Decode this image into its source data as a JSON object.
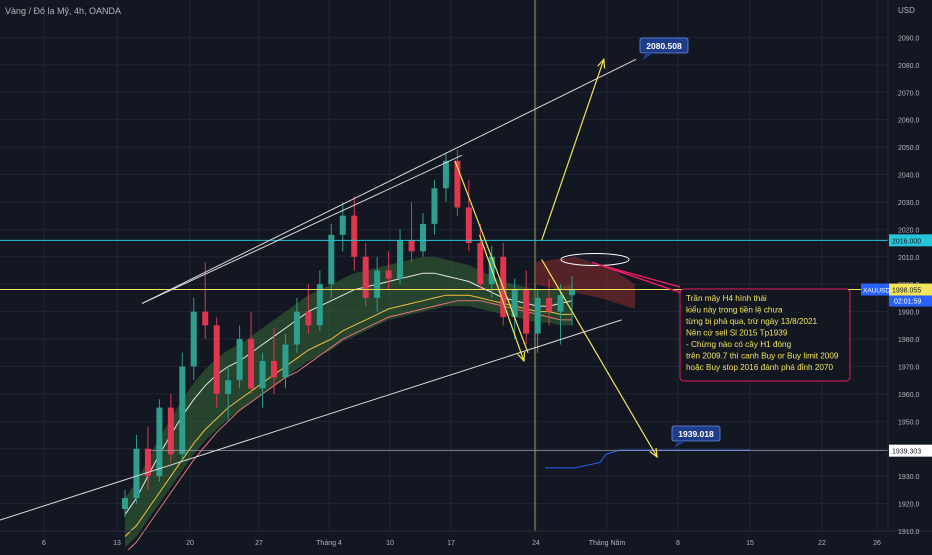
{
  "header": {
    "title": "Vàng / Đô la Mỹ, 4h, OANDA",
    "currency": "USD"
  },
  "colors": {
    "background": "#131722",
    "grid": "#1f2433",
    "axis_text": "#b2b5be",
    "candle_up": "#2e9e8f",
    "candle_down": "#e0364f",
    "trendline": "#d9d9d9",
    "arrow": "#f2e45c",
    "cyan_level": "#26c6da",
    "yellow_level": "#f2e45c",
    "label_blue": "#1e3c8c",
    "annotation_pink": "#e91e63",
    "cloud_green": "#3d7a3d",
    "cloud_red": "#8c2b2b",
    "ema_blue": "#2962ff",
    "ema_orange": "#ff9800"
  },
  "chart_data": {
    "type": "candlestick",
    "ylim": [
      1910,
      2100
    ],
    "y_ticks": [
      1910,
      1920,
      1930,
      1940,
      1950,
      1960,
      1970,
      1980,
      1990,
      2000,
      2010,
      2020,
      2030,
      2040,
      2050,
      2060,
      2070,
      2080,
      2090
    ],
    "x_tick_labels": [
      "6",
      "13",
      "20",
      "27",
      "Tháng 4",
      "10",
      "17",
      "24",
      "Tháng Năm",
      "8",
      "15",
      "22",
      "26"
    ],
    "series": [
      {
        "kind": "candles",
        "values": [
          [
            1918,
            1925,
            1915,
            1922
          ],
          [
            1922,
            1945,
            1920,
            1940
          ],
          [
            1940,
            1948,
            1925,
            1930
          ],
          [
            1930,
            1958,
            1928,
            1955
          ],
          [
            1955,
            1960,
            1935,
            1938
          ],
          [
            1938,
            1975,
            1936,
            1970
          ],
          [
            1970,
            1995,
            1965,
            1990
          ],
          [
            1990,
            2008,
            1980,
            1985
          ],
          [
            1985,
            1988,
            1955,
            1960
          ],
          [
            1960,
            1970,
            1950,
            1965
          ],
          [
            1965,
            1985,
            1962,
            1980
          ],
          [
            1980,
            1990,
            1960,
            1962
          ],
          [
            1962,
            1975,
            1955,
            1972
          ],
          [
            1972,
            1984,
            1960,
            1966
          ],
          [
            1966,
            1982,
            1962,
            1978
          ],
          [
            1978,
            1995,
            1975,
            1990
          ],
          [
            1990,
            2000,
            1982,
            1985
          ],
          [
            1985,
            2005,
            1983,
            2000
          ],
          [
            2000,
            2022,
            1995,
            2018
          ],
          [
            2018,
            2030,
            2012,
            2025
          ],
          [
            2025,
            2032,
            2005,
            2010
          ],
          [
            2010,
            2015,
            1992,
            1995
          ],
          [
            1995,
            2010,
            1990,
            2005
          ],
          [
            2005,
            2012,
            1998,
            2002
          ],
          [
            2002,
            2020,
            2000,
            2016
          ],
          [
            2016,
            2030,
            2008,
            2012
          ],
          [
            2012,
            2026,
            2010,
            2022
          ],
          [
            2022,
            2038,
            2018,
            2035
          ],
          [
            2035,
            2048,
            2030,
            2045
          ],
          [
            2045,
            2049,
            2025,
            2028
          ],
          [
            2028,
            2038,
            2012,
            2015
          ],
          [
            2015,
            2022,
            1998,
            2000
          ],
          [
            2000,
            2014,
            1995,
            2010
          ],
          [
            2010,
            2015,
            1985,
            1988
          ],
          [
            1988,
            2002,
            1980,
            1998
          ],
          [
            1998,
            2005,
            1978,
            1982
          ],
          [
            1982,
            1998,
            1975,
            1995
          ],
          [
            1995,
            2002,
            1985,
            1990
          ],
          [
            1990,
            2000,
            1978,
            1996
          ],
          [
            1996,
            2003,
            1985,
            1998
          ]
        ]
      },
      {
        "kind": "line",
        "name": "",
        "values": [
          1916,
          1922,
          1930,
          1938,
          1945,
          1952,
          1958,
          1963,
          1967,
          1970,
          1972,
          1975,
          1978,
          1981,
          1984,
          1987,
          1990,
          1992,
          1994,
          1996,
          1998,
          1999,
          2000,
          2001,
          2002,
          2003,
          2004,
          2004,
          2003,
          2002,
          2001,
          1999,
          1997,
          1995,
          1994,
          1993,
          1992,
          1992,
          1993,
          1994
        ]
      },
      {
        "kind": "line",
        "name": "",
        "values": [
          1908,
          1912,
          1918,
          1924,
          1930,
          1936,
          1942,
          1947,
          1951,
          1955,
          1958,
          1961,
          1964,
          1967,
          1970,
          1973,
          1976,
          1978,
          1980,
          1983,
          1985,
          1987,
          1989,
          1991,
          1992,
          1993,
          1994,
          1995,
          1996,
          1996,
          1996,
          1995,
          1994,
          1993,
          1992,
          1991,
          1990,
          1990,
          1989,
          1989
        ]
      },
      {
        "kind": "line",
        "name": "",
        "values": [
          1902,
          1906,
          1912,
          1918,
          1924,
          1930,
          1936,
          1941,
          1946,
          1950,
          1954,
          1957,
          1960,
          1963,
          1966,
          1968,
          1971,
          1974,
          1977,
          1980,
          1982,
          1984,
          1986,
          1988,
          1989,
          1990,
          1991,
          1992,
          1993,
          1994,
          1994,
          1994,
          1993,
          1992,
          1991,
          1990,
          1989,
          1988,
          1987,
          1987
        ]
      }
    ],
    "trendlines": [
      {
        "x": [
          0.16,
          0.52
        ],
        "y": [
          1993,
          2047
        ]
      },
      {
        "x": [
          0.0,
          0.7
        ],
        "y": [
          1914,
          1987
        ]
      }
    ],
    "arrows": [
      {
        "x": [
          0.54,
          0.59
        ],
        "y": [
          2018,
          1972
        ]
      },
      {
        "x": [
          0.61,
          0.68
        ],
        "y": [
          2016,
          2082
        ]
      },
      {
        "x": [
          0.61,
          0.74
        ],
        "y": [
          2009,
          1937
        ]
      }
    ],
    "levels": [
      {
        "value": 2016.0,
        "label": "2016.000",
        "color": "cyan"
      },
      {
        "value": 1998.055,
        "label": "1998.055",
        "color": "yellow",
        "sublabel": "XAUUSD",
        "timer": "02:01:59"
      },
      {
        "value": 1939.303,
        "label": "1939.303",
        "color": "white"
      }
    ],
    "price_labels": [
      {
        "value": 2080.508,
        "text": "2080.508"
      },
      {
        "value": 1939.018,
        "text": "1939.018"
      }
    ]
  },
  "annotation": {
    "lines": [
      "Trần mây H4 hình thái",
      "kiểu này trong tiền lệ chưa",
      "từng bị phá qua, trừ ngày 13/8/2021",
      "Nên cứ sell Sl 2015 Tp1939",
      "- Chừng nào có cây H1 đóng",
      "trên 2009.7 thì canh Buy or Buy limit 2009",
      "hoặc Buy stop 2016 đánh phá đỉnh 2070"
    ]
  }
}
